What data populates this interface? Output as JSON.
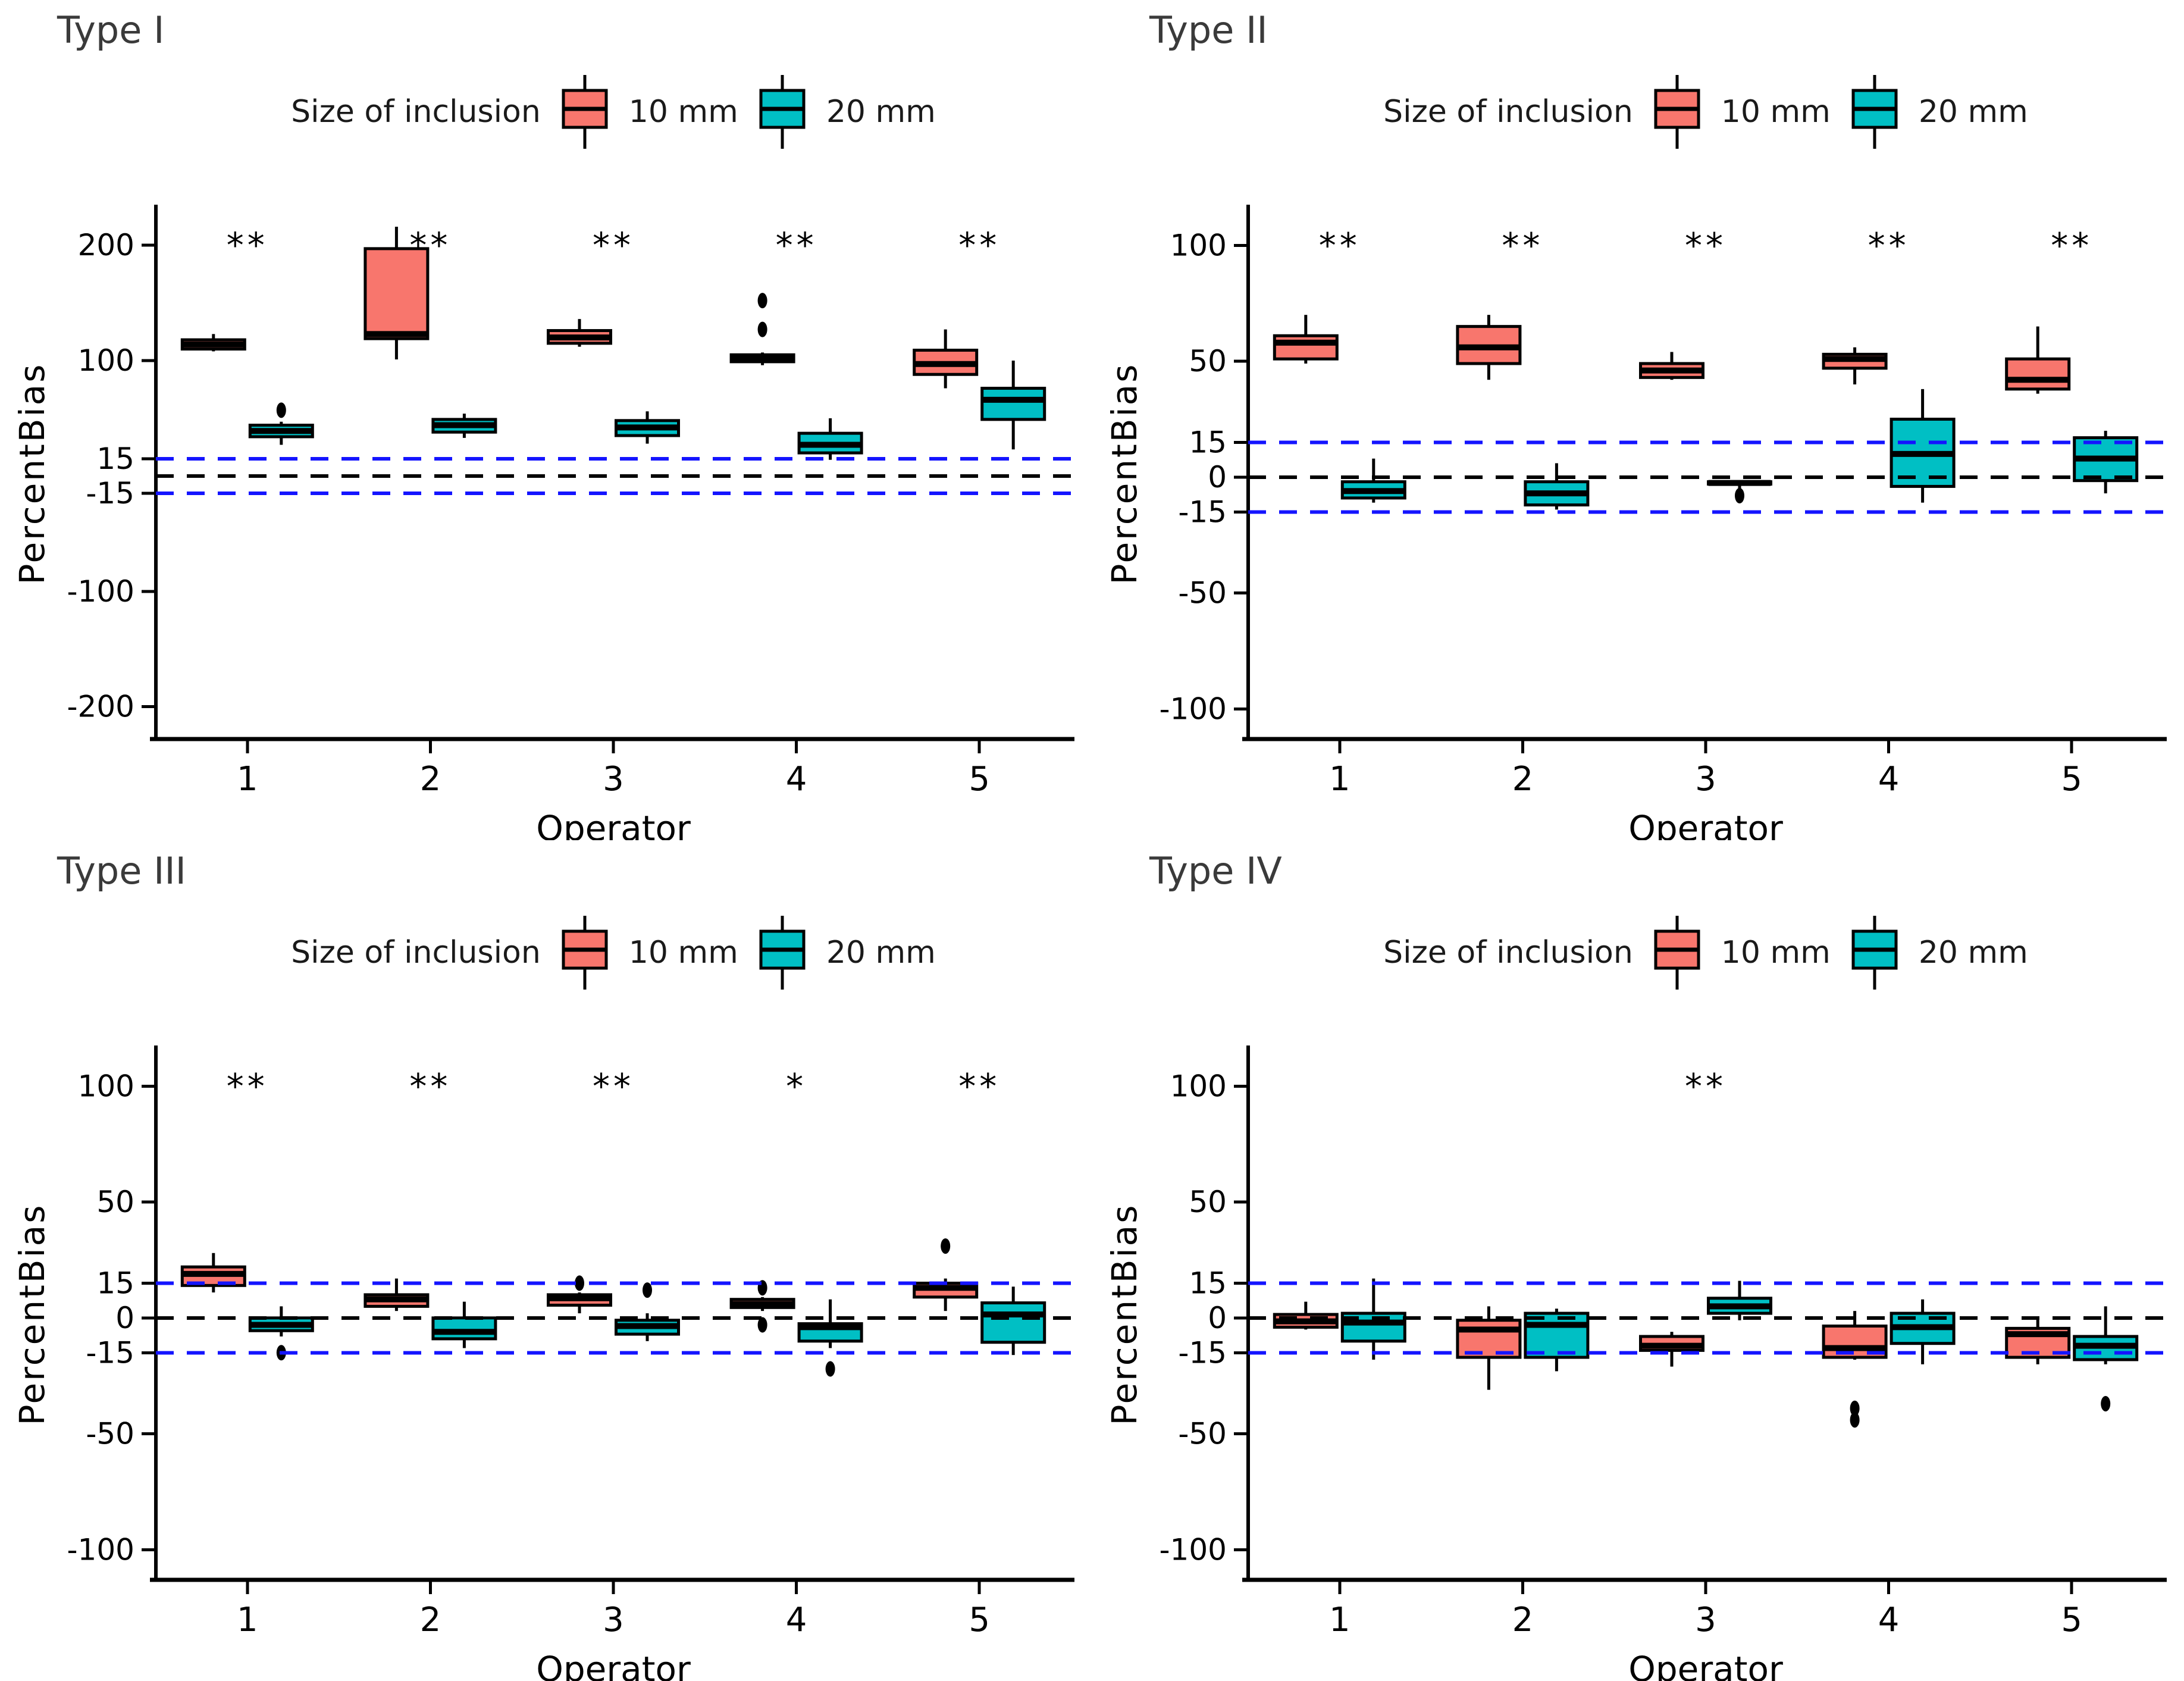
{
  "colors": {
    "series_10mm": "#F8766D",
    "series_20mm": "#00BFC4",
    "ref_blue": "#1414FF",
    "ref_black": "#000000"
  },
  "legend": {
    "title": "Size of inclusion",
    "items": [
      {
        "label": "10 mm",
        "color": "#F8766D"
      },
      {
        "label": "20 mm",
        "color": "#00BFC4"
      }
    ]
  },
  "axes": {
    "x_label": "Operator",
    "y_label": "PercentBias",
    "x_categories": [
      "1",
      "2",
      "3",
      "4",
      "5"
    ]
  },
  "reference_lines": [
    {
      "y": 15,
      "color": "#1414FF",
      "style": "dashed"
    },
    {
      "y": 0,
      "color": "#000000",
      "style": "dashed"
    },
    {
      "y": -15,
      "color": "#1414FF",
      "style": "dashed"
    }
  ],
  "chart_data": [
    {
      "type": "boxplot",
      "title": "Type I",
      "xlabel": "Operator",
      "ylabel": "PercentBias",
      "y_ticks": [
        200,
        100,
        15,
        -15,
        -100,
        -200
      ],
      "y_domain": [
        -228,
        232
      ],
      "sig_y": 200,
      "significance": [
        "**",
        "**",
        "**",
        "**",
        "**"
      ],
      "categories": [
        "1",
        "2",
        "3",
        "4",
        "5"
      ],
      "series": [
        {
          "name": "10 mm",
          "boxes": [
            {
              "low": 108,
              "q1": 110,
              "median": 114,
              "q3": 118,
              "high": 123,
              "outliers": []
            },
            {
              "low": 101,
              "q1": 119,
              "median": 123,
              "q3": 197,
              "high": 216,
              "outliers": []
            },
            {
              "low": 112,
              "q1": 115,
              "median": 120,
              "q3": 126,
              "high": 136,
              "outliers": []
            },
            {
              "low": 96,
              "q1": 99,
              "median": 102,
              "q3": 105,
              "high": 107,
              "outliers": [
                127,
                152
              ]
            },
            {
              "low": 76,
              "q1": 88,
              "median": 97,
              "q3": 109,
              "high": 127,
              "outliers": []
            }
          ]
        },
        {
          "name": "20 mm",
          "boxes": [
            {
              "low": 27,
              "q1": 34,
              "median": 39,
              "q3": 44,
              "high": 47,
              "outliers": [
                57
              ]
            },
            {
              "low": 33,
              "q1": 38,
              "median": 44,
              "q3": 49,
              "high": 54,
              "outliers": []
            },
            {
              "low": 28,
              "q1": 35,
              "median": 42,
              "q3": 48,
              "high": 56,
              "outliers": []
            },
            {
              "low": 14,
              "q1": 20,
              "median": 27,
              "q3": 37,
              "high": 50,
              "outliers": []
            },
            {
              "low": 23,
              "q1": 49,
              "median": 66,
              "q3": 76,
              "high": 100,
              "outliers": []
            }
          ]
        }
      ]
    },
    {
      "type": "boxplot",
      "title": "Type II",
      "xlabel": "Operator",
      "ylabel": "PercentBias",
      "y_ticks": [
        100,
        50,
        15,
        0,
        -15,
        -50,
        -100
      ],
      "y_domain": [
        -113,
        116
      ],
      "sig_y": 100,
      "significance": [
        "**",
        "**",
        "**",
        "**",
        "**"
      ],
      "categories": [
        "1",
        "2",
        "3",
        "4",
        "5"
      ],
      "series": [
        {
          "name": "10 mm",
          "boxes": [
            {
              "low": 49,
              "q1": 51,
              "median": 58,
              "q3": 61,
              "high": 70,
              "outliers": []
            },
            {
              "low": 42,
              "q1": 49,
              "median": 56,
              "q3": 65,
              "high": 70,
              "outliers": []
            },
            {
              "low": 42,
              "q1": 43,
              "median": 46,
              "q3": 49,
              "high": 54,
              "outliers": []
            },
            {
              "low": 40,
              "q1": 47,
              "median": 51,
              "q3": 53,
              "high": 56,
              "outliers": []
            },
            {
              "low": 36,
              "q1": 38,
              "median": 42,
              "q3": 51,
              "high": 65,
              "outliers": []
            }
          ]
        },
        {
          "name": "20 mm",
          "boxes": [
            {
              "low": -11,
              "q1": -9,
              "median": -6,
              "q3": -2,
              "high": 8,
              "outliers": []
            },
            {
              "low": -14,
              "q1": -12,
              "median": -7,
              "q3": -2,
              "high": 6,
              "outliers": []
            },
            {
              "low": -5,
              "q1": -3,
              "median": -2.5,
              "q3": -2,
              "high": -2,
              "outliers": [
                -8
              ]
            },
            {
              "low": -11,
              "q1": -4,
              "median": 10,
              "q3": 25,
              "high": 38,
              "outliers": []
            },
            {
              "low": -7,
              "q1": -1.5,
              "median": 8,
              "q3": 17,
              "high": 20,
              "outliers": []
            }
          ]
        }
      ]
    },
    {
      "type": "boxplot",
      "title": "Type III",
      "xlabel": "Operator",
      "ylabel": "PercentBias",
      "y_ticks": [
        100,
        50,
        15,
        0,
        -15,
        -50,
        -100
      ],
      "y_domain": [
        -113,
        116
      ],
      "sig_y": 100,
      "significance": [
        "**",
        "**",
        "**",
        "*",
        "**"
      ],
      "categories": [
        "1",
        "2",
        "3",
        "4",
        "5"
      ],
      "series": [
        {
          "name": "10 mm",
          "boxes": [
            {
              "low": 11,
              "q1": 14,
              "median": 19,
              "q3": 22,
              "high": 28,
              "outliers": []
            },
            {
              "low": 3,
              "q1": 5,
              "median": 8,
              "q3": 10,
              "high": 17,
              "outliers": []
            },
            {
              "low": 2,
              "q1": 5.5,
              "median": 8.5,
              "q3": 10,
              "high": 11,
              "outliers": [
                15
              ]
            },
            {
              "low": 3,
              "q1": 4.5,
              "median": 6,
              "q3": 8,
              "high": 9,
              "outliers": [
                13,
                -3
              ]
            },
            {
              "low": 3,
              "q1": 9,
              "median": 13,
              "q3": 15,
              "high": 17,
              "outliers": [
                31
              ]
            }
          ]
        },
        {
          "name": "20 mm",
          "boxes": [
            {
              "low": -8,
              "q1": -5.5,
              "median": -3,
              "q3": 0,
              "high": 5,
              "outliers": [
                -15
              ]
            },
            {
              "low": -13,
              "q1": -9,
              "median": -6,
              "q3": 0,
              "high": 7,
              "outliers": []
            },
            {
              "low": -10,
              "q1": -7,
              "median": -3.5,
              "q3": -1,
              "high": 2,
              "outliers": [
                12
              ]
            },
            {
              "low": -13,
              "q1": -10,
              "median": -4,
              "q3": -2.5,
              "high": 8,
              "outliers": [
                -22
              ]
            },
            {
              "low": -16,
              "q1": -10.5,
              "median": 1.5,
              "q3": 6.5,
              "high": 13.5,
              "outliers": []
            }
          ]
        }
      ]
    },
    {
      "type": "boxplot",
      "title": "Type IV",
      "xlabel": "Operator",
      "ylabel": "PercentBias",
      "y_ticks": [
        100,
        50,
        15,
        0,
        -15,
        -50,
        -100
      ],
      "y_domain": [
        -113,
        116
      ],
      "sig_y": 100,
      "significance": [
        "",
        "",
        "**",
        "",
        ""
      ],
      "categories": [
        "1",
        "2",
        "3",
        "4",
        "5"
      ],
      "series": [
        {
          "name": "10 mm",
          "boxes": [
            {
              "low": -5,
              "q1": -4,
              "median": -1.5,
              "q3": 1.5,
              "high": 7,
              "outliers": []
            },
            {
              "low": -31,
              "q1": -17,
              "median": -5,
              "q3": -1,
              "high": 5,
              "outliers": []
            },
            {
              "low": -21,
              "q1": -14,
              "median": -12,
              "q3": -8,
              "high": -6,
              "outliers": []
            },
            {
              "low": -18,
              "q1": -17,
              "median": -13,
              "q3": -3.5,
              "high": 3,
              "outliers": [
                -39,
                -44
              ]
            },
            {
              "low": -20,
              "q1": -17,
              "median": -7,
              "q3": -4.5,
              "high": 0,
              "outliers": []
            }
          ]
        },
        {
          "name": "20 mm",
          "boxes": [
            {
              "low": -18,
              "q1": -10,
              "median": -2,
              "q3": 2,
              "high": 17,
              "outliers": []
            },
            {
              "low": -23,
              "q1": -17,
              "median": -3,
              "q3": 2,
              "high": 4,
              "outliers": []
            },
            {
              "low": -1,
              "q1": 2,
              "median": 5,
              "q3": 8.5,
              "high": 16,
              "outliers": []
            },
            {
              "low": -20,
              "q1": -11,
              "median": -4,
              "q3": 2,
              "high": 8,
              "outliers": []
            },
            {
              "low": -20,
              "q1": -18,
              "median": -12,
              "q3": -8,
              "high": 5,
              "outliers": [
                -37
              ]
            }
          ]
        }
      ]
    }
  ]
}
